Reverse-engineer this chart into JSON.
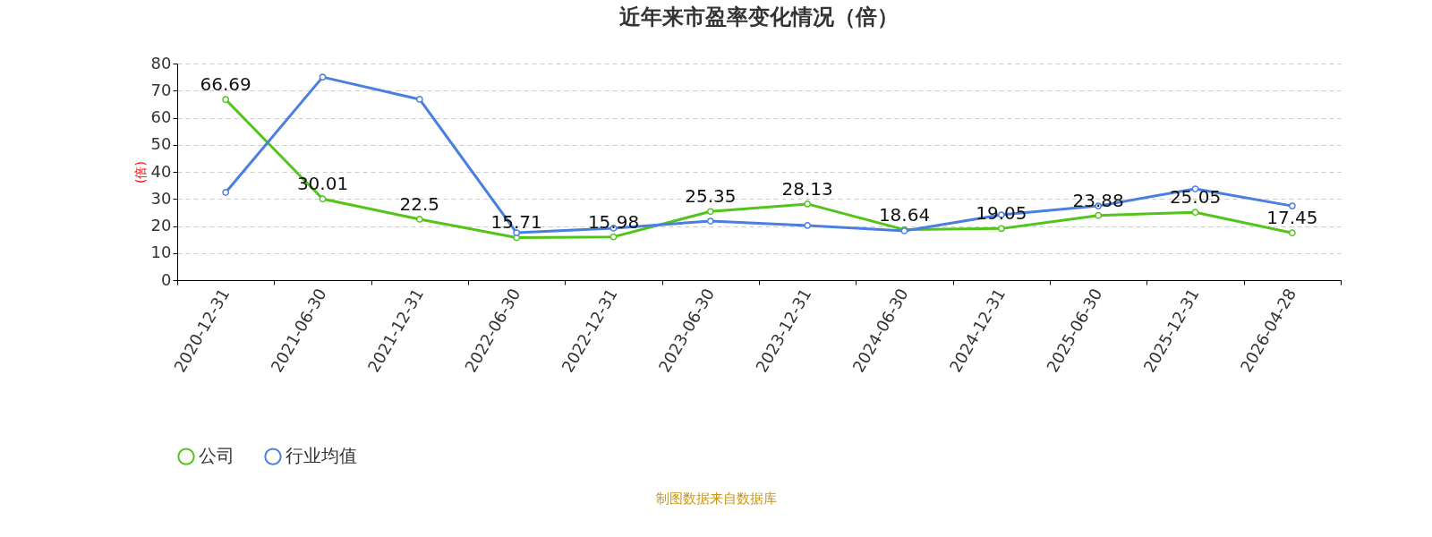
{
  "chart_data": {
    "type": "line",
    "title": "近年来市盈率变化情况（倍）",
    "ylabel": "(倍)",
    "categories": [
      "2020-12-31",
      "2021-06-30",
      "2021-12-31",
      "2022-06-30",
      "2022-12-31",
      "2023-06-30",
      "2023-12-31",
      "2024-06-30",
      "2024-12-31",
      "2025-06-30",
      "2025-12-31",
      "2026-04-28"
    ],
    "series": [
      {
        "name": "公司",
        "color": "#52c41a",
        "values": [
          66.69,
          30.01,
          22.5,
          15.71,
          15.98,
          25.35,
          28.13,
          18.64,
          19.05,
          23.88,
          25.05,
          17.45
        ],
        "value_labels": [
          "66.69",
          "30.01",
          "22.5",
          "15.71",
          "15.98",
          "25.35",
          "28.13",
          "18.64",
          "19.05",
          "23.88",
          "25.05",
          "17.45"
        ]
      },
      {
        "name": "行业均值",
        "color": "#4a7ee0",
        "values": [
          32.4,
          75.0,
          66.8,
          17.5,
          19.2,
          21.8,
          20.2,
          18.2,
          24.1,
          27.4,
          33.7,
          27.4
        ]
      }
    ],
    "ylim": [
      0,
      80
    ],
    "yticks": [
      0,
      10,
      20,
      30,
      40,
      50,
      60,
      70,
      80
    ],
    "grid": "y",
    "legend": "bottom",
    "marker": "circle",
    "line_style": "solid",
    "annotations": [
      "制图数据来自数据库"
    ]
  }
}
